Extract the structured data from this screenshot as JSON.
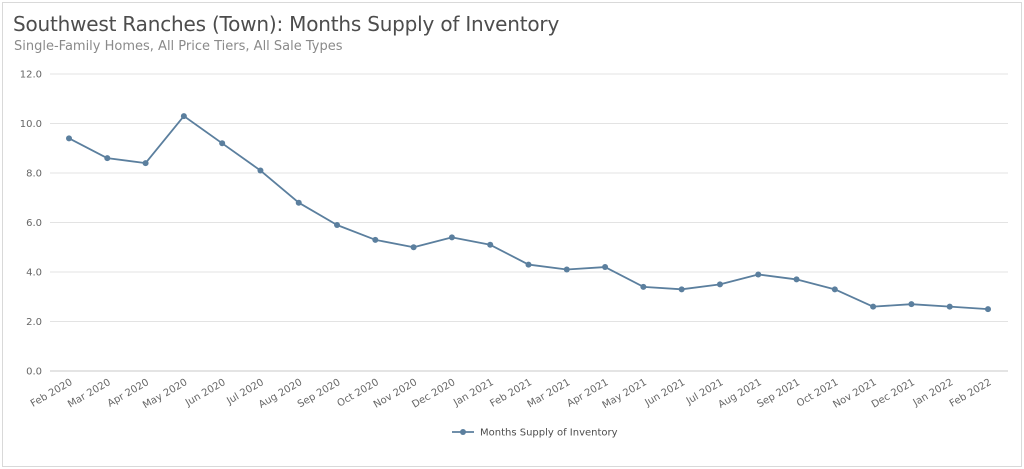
{
  "header": {
    "title": "Southwest Ranches (Town): Months Supply of Inventory",
    "subtitle": "Single-Family Homes, All Price Tiers, All Sale Types"
  },
  "chart_data": {
    "type": "line",
    "title": "Southwest Ranches (Town): Months Supply of Inventory",
    "subtitle": "Single-Family Homes, All Price Tiers, All Sale Types",
    "xlabel": "",
    "ylabel": "",
    "ylim": [
      0,
      12
    ],
    "yticks": [
      "0.0",
      "2.0",
      "4.0",
      "6.0",
      "8.0",
      "10.0",
      "12.0"
    ],
    "grid": true,
    "legend_position": "bottom",
    "categories": [
      "Feb 2020",
      "Mar 2020",
      "Apr 2020",
      "May 2020",
      "Jun 2020",
      "Jul 2020",
      "Aug 2020",
      "Sep 2020",
      "Oct 2020",
      "Nov 2020",
      "Dec 2020",
      "Jan 2021",
      "Feb 2021",
      "Mar 2021",
      "Apr 2021",
      "May 2021",
      "Jun 2021",
      "Jul 2021",
      "Aug 2021",
      "Sep 2021",
      "Oct 2021",
      "Nov 2021",
      "Dec 2021",
      "Jan 2022",
      "Feb 2022"
    ],
    "series": [
      {
        "name": "Months Supply of Inventory",
        "color": "#5b7f9e",
        "values": [
          9.4,
          8.6,
          8.4,
          10.3,
          9.2,
          8.1,
          6.8,
          5.9,
          5.3,
          5.0,
          5.4,
          5.1,
          4.3,
          4.1,
          4.2,
          3.4,
          3.3,
          3.5,
          3.9,
          3.7,
          3.3,
          2.6,
          2.7,
          2.6,
          2.5
        ]
      }
    ]
  }
}
